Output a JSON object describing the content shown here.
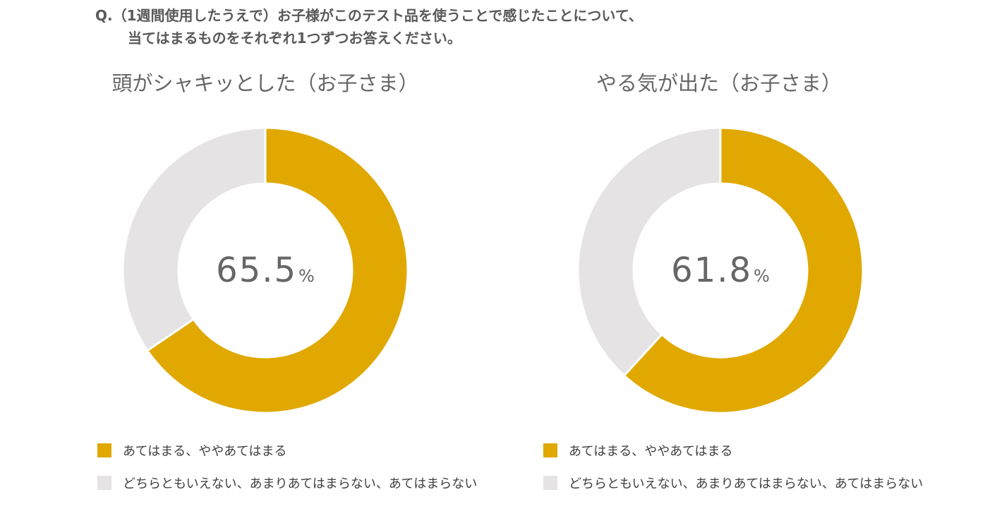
{
  "question": {
    "line1": "Q.（1週間使用したうえで）お子様がこのテスト品を使うことで感じたことについて、",
    "line2": "当てはまるものをそれぞれ1つずつお答えください。"
  },
  "colors": {
    "agree": "#E0A800",
    "other": "#E5E3E4"
  },
  "chart_data": [
    {
      "type": "pie",
      "title": "頭がシャキッとした（お子さま）",
      "center_label": "65.5",
      "center_unit": "%",
      "slices": [
        {
          "label": "あてはまる、ややあてはまる",
          "value": 65.5
        },
        {
          "label": "どちらともいえない、あまりあてはまらない、あてはまらない",
          "value": 34.5
        }
      ]
    },
    {
      "type": "pie",
      "title": "やる気が出た（お子さま）",
      "center_label": "61.8",
      "center_unit": "%",
      "slices": [
        {
          "label": "あてはまる、ややあてはまる",
          "value": 61.8
        },
        {
          "label": "どちらともいえない、あまりあてはまらない、あてはまらない",
          "value": 38.2
        }
      ]
    }
  ]
}
